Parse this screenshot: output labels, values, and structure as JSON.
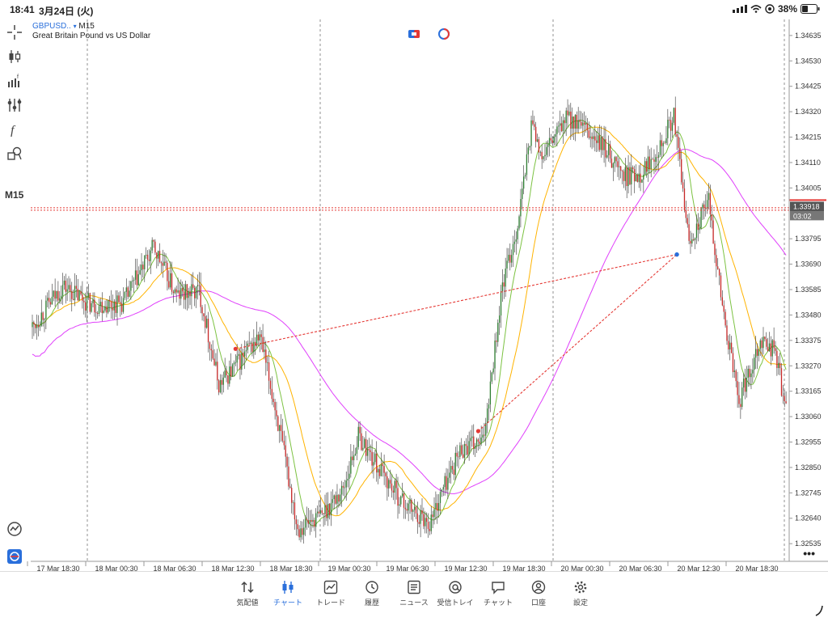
{
  "status_bar": {
    "time": "18:41",
    "date": "3月24日 (火)",
    "battery": "38%"
  },
  "toolbar": {
    "timeframe": "M15",
    "icons": [
      "crosshair-icon",
      "candles-icon",
      "indicators-icon",
      "settings-sliders-icon",
      "function-icon",
      "shapes-icon"
    ]
  },
  "chart": {
    "symbol": "GBPUSD..",
    "timeframe": "M15",
    "description": "Great Britain Pound vs US Dollar",
    "current_price": "1.33918",
    "countdown": "03:02",
    "price_axis": [
      "1.34635",
      "1.34530",
      "1.34425",
      "1.34320",
      "1.34215",
      "1.34110",
      "1.34005",
      "1.33795",
      "1.33690",
      "1.33585",
      "1.33480",
      "1.33375",
      "1.33270",
      "1.33165",
      "1.33060",
      "1.32955",
      "1.32850",
      "1.32745",
      "1.32640",
      "1.32535"
    ],
    "time_axis": [
      "17 Mar 18:30",
      "18 Mar 00:30",
      "18 Mar 06:30",
      "18 Mar 12:30",
      "18 Mar 18:30",
      "19 Mar 00:30",
      "19 Mar 06:30",
      "19 Mar 12:30",
      "19 Mar 18:30",
      "20 Mar 00:30",
      "20 Mar 06:30",
      "20 Mar 12:30",
      "20 Mar 18:30"
    ],
    "colors": {
      "bull": "#2e7d32",
      "bear": "#c62828",
      "ma_fast": "#7cc242",
      "ma_mid": "#ffb300",
      "ma_slow": "#e040fb",
      "price_line": "#e53935"
    }
  },
  "tabs": [
    {
      "label": "気配値",
      "icon": "quotes-icon"
    },
    {
      "label": "チャート",
      "icon": "chart-icon",
      "active": true
    },
    {
      "label": "トレード",
      "icon": "trade-icon"
    },
    {
      "label": "履歴",
      "icon": "history-icon"
    },
    {
      "label": "ニュース",
      "icon": "news-icon"
    },
    {
      "label": "受信トレイ",
      "icon": "mail-icon"
    },
    {
      "label": "チャット",
      "icon": "chat-icon"
    },
    {
      "label": "口座",
      "icon": "account-icon"
    },
    {
      "label": "設定",
      "icon": "settings-icon"
    }
  ],
  "more_label": "•••"
}
